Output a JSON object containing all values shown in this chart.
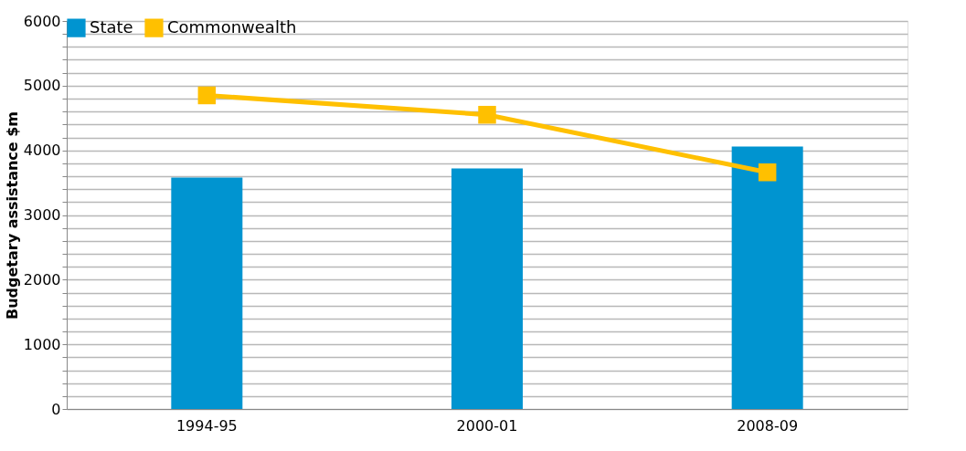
{
  "chart_data": {
    "type": "bar",
    "ylabel": "Budgetary assistance $m",
    "categories": [
      "1994-95",
      "2000-01",
      "2008-09"
    ],
    "series": [
      {
        "name": "State",
        "color": "#0094d0",
        "values": [
          3580,
          3720,
          4060
        ]
      },
      {
        "name": "Commonwealth",
        "type": "line",
        "color": "#ffc000",
        "marker": "square",
        "values": [
          4850,
          4550,
          3660
        ]
      }
    ],
    "ylim": [
      0,
      6000
    ],
    "yticks": [
      0,
      {
        "value": 200,
        "label": null
      },
      {
        "value": 400,
        "label": null
      },
      {
        "value": 600,
        "label": null
      },
      {
        "value": 800,
        "label": null
      },
      1000,
      {
        "value": 1200,
        "label": null
      },
      {
        "value": 1400,
        "label": null
      },
      {
        "value": 1600,
        "label": null
      },
      {
        "value": 1800,
        "label": null
      },
      2000,
      {
        "value": 2200,
        "label": null
      },
      {
        "value": 2400,
        "label": null
      },
      {
        "value": 2600,
        "label": null
      },
      {
        "value": 2800,
        "label": null
      },
      3000,
      {
        "value": 3200,
        "label": null
      },
      {
        "value": 3400,
        "label": null
      },
      {
        "value": 3600,
        "label": null
      },
      {
        "value": 3800,
        "label": null
      },
      4000,
      {
        "value": 4200,
        "label": null
      },
      {
        "value": 4400,
        "label": null
      },
      {
        "value": 4600,
        "label": null
      },
      {
        "value": 4800,
        "label": null
      },
      5000,
      {
        "value": 5200,
        "label": null
      },
      {
        "value": 5400,
        "label": null
      },
      {
        "value": 5600,
        "label": null
      },
      {
        "value": 5800,
        "label": null
      },
      6000
    ],
    "grid": "y",
    "legend": "top"
  }
}
